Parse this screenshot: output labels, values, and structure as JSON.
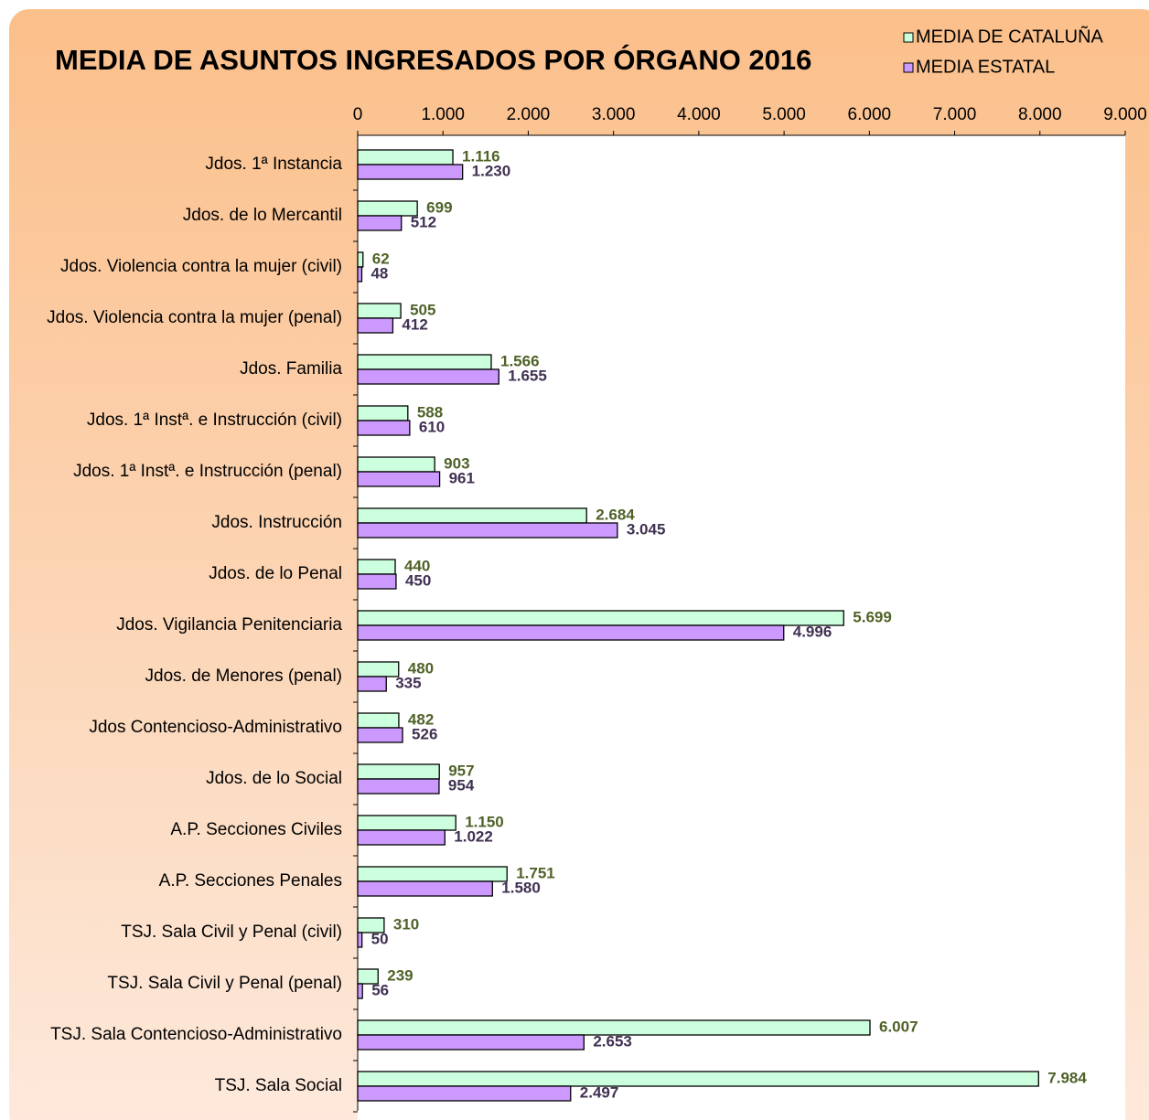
{
  "chart_data": {
    "type": "bar",
    "orientation": "horizontal",
    "title": "MEDIA DE ASUNTOS INGRESADOS POR ÓRGANO 2016",
    "categories": [
      "Jdos. 1ª Instancia",
      "Jdos. de lo Mercantil",
      "Jdos. Violencia contra la mujer (civil)",
      "Jdos. Violencia contra la mujer (penal)",
      "Jdos. Familia",
      "Jdos. 1ª Instª. e Instrucción (civil)",
      "Jdos. 1ª Instª. e Instrucción (penal)",
      "Jdos. Instrucción",
      "Jdos. de lo Penal",
      "Jdos. Vigilancia Penitenciaria",
      "Jdos. de Menores (penal)",
      "Jdos Contencioso-Administrativo",
      "Jdos. de lo Social",
      "A.P. Secciones Civiles",
      "A.P. Secciones Penales",
      "TSJ. Sala Civil y Penal (civil)",
      "TSJ. Sala Civil y Penal (penal)",
      "TSJ. Sala Contencioso-Administrativo",
      "TSJ. Sala Social"
    ],
    "series": [
      {
        "name": "MEDIA DE CATALUÑA",
        "color": "#ccffdd",
        "label_color": "#4f6228",
        "values": [
          1116,
          699,
          62,
          505,
          1566,
          588,
          903,
          2684,
          440,
          5699,
          480,
          482,
          957,
          1150,
          1751,
          310,
          239,
          6007,
          7984
        ],
        "value_labels": [
          "1.116",
          "699",
          "62",
          "505",
          "1.566",
          "588",
          "903",
          "2.684",
          "440",
          "5.699",
          "480",
          "482",
          "957",
          "1.150",
          "1.751",
          "310",
          "239",
          "6.007",
          "7.984"
        ]
      },
      {
        "name": "MEDIA ESTATAL",
        "color": "#cc99ff",
        "label_color": "#403152",
        "values": [
          1230,
          512,
          48,
          412,
          1655,
          610,
          961,
          3045,
          450,
          4996,
          335,
          526,
          954,
          1022,
          1580,
          50,
          56,
          2653,
          2497
        ],
        "value_labels": [
          "1.230",
          "512",
          "48",
          "412",
          "1.655",
          "610",
          "961",
          "3.045",
          "450",
          "4.996",
          "335",
          "526",
          "954",
          "1.022",
          "1.580",
          "50",
          "56",
          "2.653",
          "2.497"
        ]
      }
    ],
    "xlim": [
      0,
      9000
    ],
    "xticks": [
      0,
      {
        "value": 1000,
        "label": "1.000"
      },
      {
        "value": 2000,
        "label": "2.000"
      },
      {
        "value": 3000,
        "label": "3.000"
      },
      {
        "value": 4000,
        "label": "4.000"
      },
      {
        "value": 5000,
        "label": "5.000"
      },
      {
        "value": 6000,
        "label": "6.000"
      },
      {
        "value": 7000,
        "label": "7.000"
      },
      {
        "value": 8000,
        "label": "8.000"
      },
      {
        "value": 9000,
        "label": "9.000"
      }
    ],
    "grid": false,
    "legend": "top-right"
  }
}
